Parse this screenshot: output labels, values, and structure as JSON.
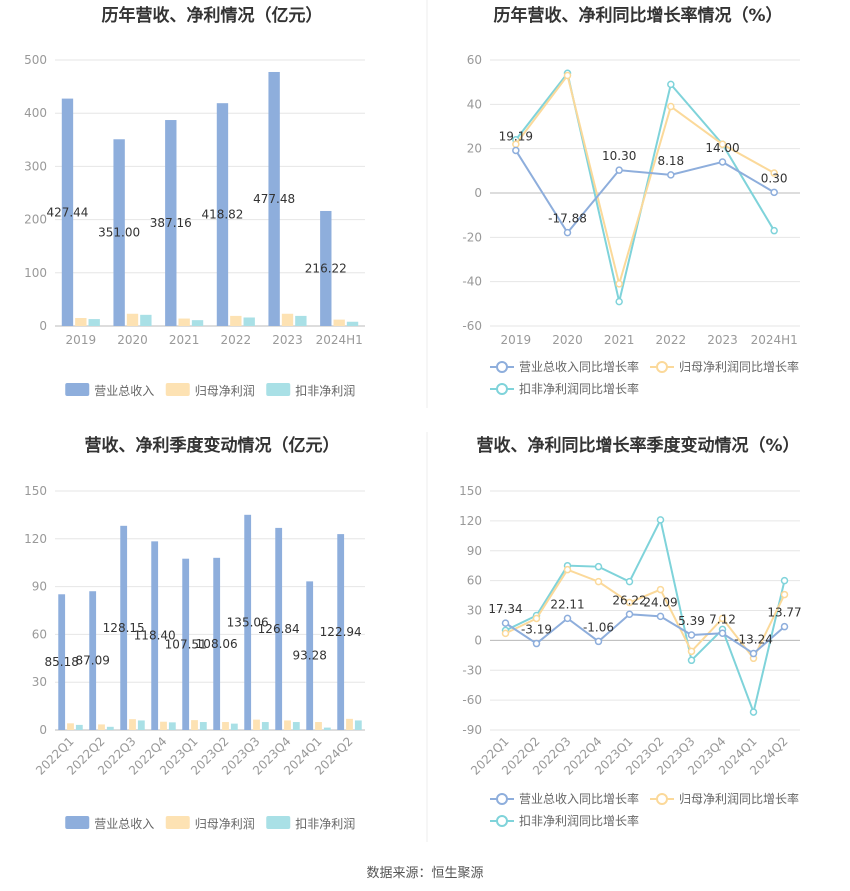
{
  "source": "数据来源：恒生聚源",
  "colors": {
    "revenue": "#8eaedc",
    "net_profit": "#fde2b3",
    "deducted_profit": "#a9e0e6",
    "rev_line": "#8eaedc",
    "np_line": "#fbd99a",
    "dp_line": "#7fd3da",
    "grid": "#e6e6e6",
    "axis_text": "#999999",
    "title": "#333333"
  },
  "chart_data": [
    {
      "id": "annual-bar",
      "type": "bar",
      "title": "历年营收、净利情况（亿元）",
      "categories": [
        "2019",
        "2020",
        "2021",
        "2022",
        "2023",
        "2024H1"
      ],
      "ylim": [
        0,
        500
      ],
      "yticks": [
        "0",
        "100",
        "200",
        "300",
        "400",
        "500"
      ],
      "series": [
        {
          "name": "营业总收入",
          "values": [
            427.44,
            351.0,
            387.16,
            418.82,
            477.48,
            216.22
          ],
          "labels": [
            "427.44",
            "351.00",
            "387.16",
            "418.82",
            "477.48",
            "216.22"
          ]
        },
        {
          "name": "归母净利润",
          "values": [
            15,
            23,
            14,
            19,
            23,
            12
          ]
        },
        {
          "name": "扣非净利润",
          "values": [
            13,
            21,
            11,
            16,
            19,
            8
          ]
        }
      ],
      "legend_position": "bottom"
    },
    {
      "id": "annual-line",
      "type": "line",
      "title": "历年营收、净利同比增长率情况（%）",
      "categories": [
        "2019",
        "2020",
        "2021",
        "2022",
        "2023",
        "2024H1"
      ],
      "ylim": [
        -60,
        60
      ],
      "yticks": [
        "-60",
        "-40",
        "-20",
        "0",
        "20",
        "40",
        "60"
      ],
      "series": [
        {
          "name": "营业总收入同比增长率",
          "values": [
            19.19,
            -17.88,
            10.3,
            8.18,
            14.0,
            0.3
          ],
          "labels": [
            "19.19",
            "-17.88",
            "10.30",
            "8.18",
            "14.00",
            "0.30"
          ]
        },
        {
          "name": "归母净利润同比增长率",
          "values": [
            22,
            53,
            -41,
            39,
            22,
            9
          ]
        },
        {
          "name": "扣非净利润同比增长率",
          "values": [
            24,
            54,
            -49,
            49,
            22,
            -17
          ]
        }
      ],
      "legend_position": "bottom"
    },
    {
      "id": "quarterly-bar",
      "type": "bar",
      "title": "营收、净利季度变动情况（亿元）",
      "categories": [
        "2022Q1",
        "2022Q2",
        "2022Q3",
        "2022Q4",
        "2023Q1",
        "2023Q2",
        "2023Q3",
        "2023Q4",
        "2024Q1",
        "2024Q2"
      ],
      "ylim": [
        0,
        150
      ],
      "yticks": [
        "0",
        "30",
        "60",
        "90",
        "120",
        "150"
      ],
      "series": [
        {
          "name": "营业总收入",
          "values": [
            85.18,
            87.09,
            128.15,
            118.4,
            107.51,
            108.06,
            135.06,
            126.84,
            93.28,
            122.94
          ],
          "labels": [
            "85.18",
            "87.09",
            "128.15",
            "118.40",
            "107.51",
            "108.06",
            "135.06",
            "126.84",
            "93.28",
            "122.94"
          ]
        },
        {
          "name": "归母净利润",
          "values": [
            4.2,
            3.5,
            6.8,
            5.2,
            6.2,
            5.0,
            6.5,
            6.0,
            5.0,
            7.0
          ]
        },
        {
          "name": "扣非净利润",
          "values": [
            3.2,
            2.0,
            6.0,
            4.8,
            5.0,
            4.0,
            5.0,
            5.0,
            1.5,
            6.0
          ]
        }
      ],
      "legend_position": "bottom"
    },
    {
      "id": "quarterly-line",
      "type": "line",
      "title": "营收、净利同比增长率季度变动情况（%）",
      "categories": [
        "2022Q1",
        "2022Q2",
        "2022Q3",
        "2022Q4",
        "2023Q1",
        "2023Q2",
        "2023Q3",
        "2023Q4",
        "2024Q1",
        "2024Q2"
      ],
      "ylim": [
        -90,
        150
      ],
      "yticks": [
        "-90",
        "-60",
        "-30",
        "0",
        "30",
        "60",
        "90",
        "120",
        "150"
      ],
      "series": [
        {
          "name": "营业总收入同比增长率",
          "values": [
            17.34,
            -3.19,
            22.11,
            -1.06,
            26.22,
            24.09,
            5.39,
            7.12,
            -13.24,
            13.77
          ],
          "labels": [
            "17.34",
            "-3.19",
            "22.11",
            "-1.06",
            "26.22",
            "24.09",
            "5.39",
            "7.12",
            "-13.24",
            "13.77"
          ]
        },
        {
          "name": "归母净利润同比增长率",
          "values": [
            7,
            22,
            71,
            59,
            38,
            51,
            -11,
            22,
            -18,
            46
          ]
        },
        {
          "name": "扣非净利润同比增长率",
          "values": [
            10,
            25,
            75,
            74,
            59,
            121,
            -20,
            11,
            -72,
            60
          ]
        }
      ],
      "legend_position": "bottom"
    }
  ]
}
